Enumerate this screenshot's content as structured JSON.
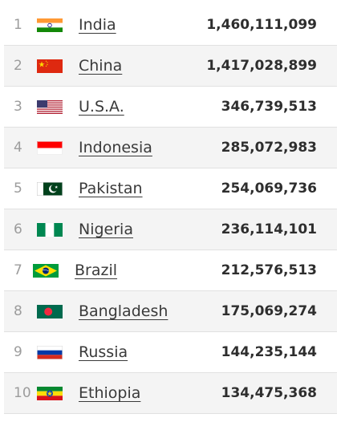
{
  "countries": [
    {
      "rank": "1",
      "name": "India",
      "population": "1,460,111,099",
      "flag": "india-flag-icon"
    },
    {
      "rank": "2",
      "name": "China",
      "population": "1,417,028,899",
      "flag": "china-flag-icon"
    },
    {
      "rank": "3",
      "name": "U.S.A.",
      "population": "346,739,513",
      "flag": "usa-flag-icon"
    },
    {
      "rank": "4",
      "name": "Indonesia",
      "population": "285,072,983",
      "flag": "indonesia-flag-icon"
    },
    {
      "rank": "5",
      "name": "Pakistan",
      "population": "254,069,736",
      "flag": "pakistan-flag-icon"
    },
    {
      "rank": "6",
      "name": "Nigeria",
      "population": "236,114,101",
      "flag": "nigeria-flag-icon"
    },
    {
      "rank": "7",
      "name": "Brazil",
      "population": "212,576,513",
      "flag": "brazil-flag-icon"
    },
    {
      "rank": "8",
      "name": "Bangladesh",
      "population": "175,069,274",
      "flag": "bangladesh-flag-icon"
    },
    {
      "rank": "9",
      "name": "Russia",
      "population": "144,235,144",
      "flag": "russia-flag-icon"
    },
    {
      "rank": "10",
      "name": "Ethiopia",
      "population": "134,475,368",
      "flag": "ethiopia-flag-icon"
    }
  ],
  "colors": {
    "rank_text": "#9c9c9c",
    "name_text": "#3a3a3a",
    "population_text": "#2e2e2e",
    "stripe": "#f4f4f4",
    "divider": "#e1e1e1"
  }
}
